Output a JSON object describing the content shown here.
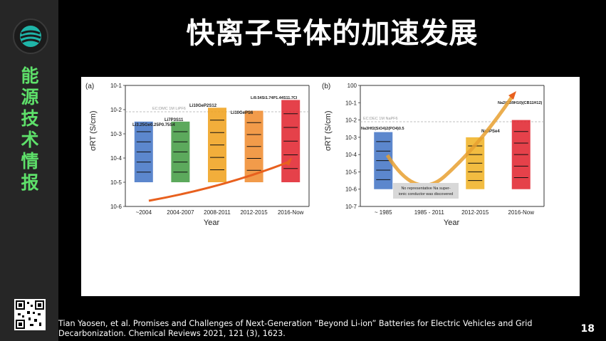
{
  "slide": {
    "title": "快离子导体的加速发展",
    "sidebar_label": [
      "能",
      "源",
      "技",
      "术",
      "情",
      "报"
    ],
    "citation": "Tian Yaosen, et al. Promises and Challenges of Next-Generation “Beyond Li-ion” Batteries for Electric Vehicles and Grid Decarbonization. Chemical Reviews 2021, 121 (3), 1623.",
    "page_number": "18"
  },
  "icons": {
    "logo": "globe-logo-icon",
    "qr": "qr-code-icon"
  },
  "colors": {
    "accent_green": "#5ee06a",
    "background": "#000000",
    "sidebar": "#262626"
  },
  "figure": {
    "panel_a": {
      "label": "(a)",
      "ylabel": "σRT (S/cm)",
      "xlabel": "Year",
      "ref_line": "EC:DMC 1M LiPF6",
      "compounds": [
        "Li3.25Ge0.25P0.75S4",
        "Li7P3S11",
        "Li10GeP2S12",
        "Li10GePS6",
        "Li9.54Si1.74P1.44S11.7Cl"
      ]
    },
    "panel_b": {
      "label": "(b)",
      "ylabel": "σRT (S/cm)",
      "xlabel": "Year",
      "ref_line": "EC:DEC 1M NaPF6",
      "compounds": [
        "Na3Hf2(SiO4)2(PO4)0.5",
        "Na3PSe4",
        "Na2(CB9H10)(CB11H12)"
      ],
      "annotation": [
        "No representative Na super-",
        "ionic conductor was discovered"
      ]
    }
  },
  "chart_data": [
    {
      "type": "bar",
      "title": "",
      "xlabel": "Year",
      "ylabel": "σRT (S/cm)",
      "yscale": "log",
      "ylim": [
        1e-06,
        0.1
      ],
      "yticks": [
        "10-6",
        "10-5",
        "10-4",
        "10-3",
        "10-2",
        "10-1"
      ],
      "categories": [
        "~2004",
        "2004-2007",
        "2008-2011",
        "2012-2015",
        "2016-Now"
      ],
      "values": [
        0.0032,
        0.0032,
        0.012,
        0.009,
        0.025
      ],
      "colors": [
        "#3f72c4",
        "#3f9a3f",
        "#f0a019",
        "#f08a2a",
        "#e0202a"
      ]
    },
    {
      "type": "bar",
      "title": "",
      "xlabel": "Year",
      "ylabel": "σRT (S/cm)",
      "yscale": "log",
      "ylim": [
        1e-07,
        1
      ],
      "yticks": [
        "10-7",
        "10-6",
        "10-5",
        "10-4",
        "10-3",
        "10-2",
        "10-1",
        "100"
      ],
      "categories": [
        "~ 1985",
        "1985 - 2011",
        "2012-2015",
        "2016-Now"
      ],
      "values": [
        0.002,
        null,
        0.001,
        0.01
      ],
      "colors": [
        "#3f72c4",
        "#c8c8c8",
        "#f0b020",
        "#e0202a"
      ]
    }
  ]
}
